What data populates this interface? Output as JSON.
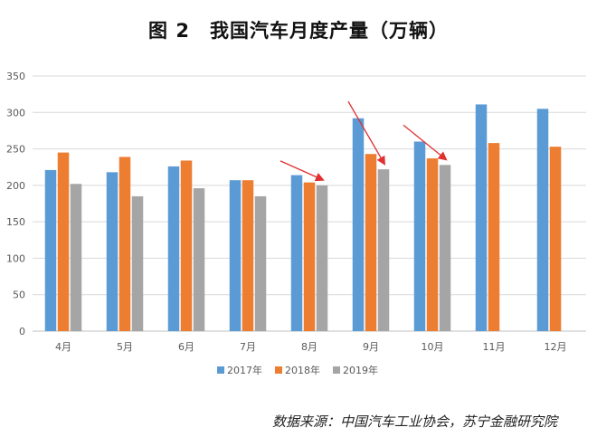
{
  "figure": {
    "title_label": "图 2",
    "title_text": "我国汽车月度产量（万辆）",
    "source": "数据来源：中国汽车工业协会，苏宁金融研究院"
  },
  "colors": {
    "series_2017": "#5b9bd5",
    "series_2018": "#ed7d31",
    "series_2019": "#a5a5a5",
    "arrow": "#e03030",
    "grid": "#d9d9d9",
    "axis_text": "#595959"
  },
  "chart_data": {
    "type": "bar",
    "title": "图 2 我国汽车月度产量（万辆）",
    "xlabel": "",
    "ylabel": "",
    "ylim": [
      0,
      350
    ],
    "yticks": [
      0,
      50,
      100,
      150,
      200,
      250,
      300,
      350
    ],
    "grid": true,
    "legend_position": "bottom",
    "categories": [
      "4月",
      "5月",
      "6月",
      "7月",
      "8月",
      "9月",
      "10月",
      "11月",
      "12月"
    ],
    "series": [
      {
        "name": "2017年",
        "values": [
          221,
          218,
          226,
          207,
          214,
          292,
          260,
          311,
          305
        ]
      },
      {
        "name": "2018年",
        "values": [
          245,
          239,
          234,
          207,
          204,
          243,
          237,
          258,
          253
        ]
      },
      {
        "name": "2019年",
        "values": [
          202,
          185,
          196,
          185,
          200,
          222,
          228,
          null,
          null
        ]
      }
    ],
    "annotations": [
      {
        "type": "arrow",
        "category": "8月",
        "note": "downward-right red arrow pointing at 2019 bar"
      },
      {
        "type": "arrow",
        "category": "9月",
        "note": "downward-right red arrow pointing at 2019 bar"
      },
      {
        "type": "arrow",
        "category": "10月",
        "note": "downward-right red arrow pointing at 2019 bar"
      }
    ]
  }
}
